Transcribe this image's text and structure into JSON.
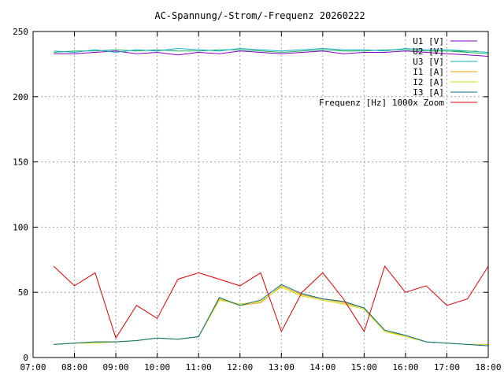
{
  "chart_data": {
    "type": "line",
    "title": "AC-Spannung/-Strom/-Frequenz 20260222",
    "xlabel": "",
    "ylabel": "",
    "xlim": [
      "07:00",
      "18:00"
    ],
    "ylim": [
      0,
      250
    ],
    "x_ticks": [
      "07:00",
      "08:00",
      "09:00",
      "10:00",
      "11:00",
      "12:00",
      "13:00",
      "14:00",
      "15:00",
      "16:00",
      "17:00",
      "18:00"
    ],
    "y_ticks": [
      "0",
      "50",
      "100",
      "150",
      "200",
      "250"
    ],
    "grid": true,
    "legend_position": "top-right",
    "x": [
      "07:30",
      "08:00",
      "08:30",
      "09:00",
      "09:30",
      "10:00",
      "10:30",
      "11:00",
      "11:30",
      "12:00",
      "12:30",
      "13:00",
      "13:30",
      "14:00",
      "14:30",
      "15:00",
      "15:30",
      "16:00",
      "16:30",
      "17:00",
      "17:30",
      "18:00"
    ],
    "series": [
      {
        "name": "U1 [V]",
        "color": "#8b00c8",
        "values": [
          233,
          233,
          234,
          235,
          233,
          234,
          232,
          234,
          233,
          235,
          234,
          233,
          234,
          235,
          233,
          234,
          234,
          235,
          234,
          233,
          232,
          231
        ]
      },
      {
        "name": "U2 [V]",
        "color": "#20b060",
        "values": [
          234,
          235,
          235,
          236,
          235,
          236,
          235,
          235,
          236,
          236,
          235,
          234,
          235,
          236,
          235,
          235,
          236,
          236,
          235,
          235,
          234,
          233
        ]
      },
      {
        "name": "U3 [V]",
        "color": "#10b0c8",
        "values": [
          235,
          234,
          236,
          234,
          236,
          235,
          237,
          236,
          235,
          237,
          236,
          235,
          236,
          237,
          236,
          236,
          235,
          237,
          236,
          236,
          235,
          234
        ]
      },
      {
        "name": "I1 [A]",
        "color": "#e8a000",
        "values": [
          10,
          11,
          12,
          12,
          13,
          15,
          14,
          16,
          45,
          40,
          42,
          55,
          48,
          45,
          42,
          38,
          20,
          17,
          12,
          11,
          10,
          10
        ]
      },
      {
        "name": "I2 [A]",
        "color": "#d8d800",
        "values": [
          10,
          11,
          11,
          12,
          13,
          15,
          14,
          16,
          44,
          41,
          43,
          54,
          47,
          44,
          41,
          37,
          20,
          16,
          12,
          11,
          10,
          10
        ]
      },
      {
        "name": "I3 [A]",
        "color": "#006e8c",
        "values": [
          10,
          11,
          12,
          12,
          13,
          15,
          14,
          16,
          46,
          40,
          44,
          56,
          49,
          45,
          43,
          38,
          21,
          17,
          12,
          11,
          10,
          9
        ]
      },
      {
        "name": "Frequenz [Hz] 1000x Zoom",
        "color": "#e00000",
        "values": [
          70,
          55,
          65,
          15,
          40,
          30,
          60,
          65,
          60,
          55,
          65,
          20,
          50,
          65,
          45,
          20,
          70,
          50,
          55,
          40,
          45,
          70
        ]
      }
    ]
  }
}
